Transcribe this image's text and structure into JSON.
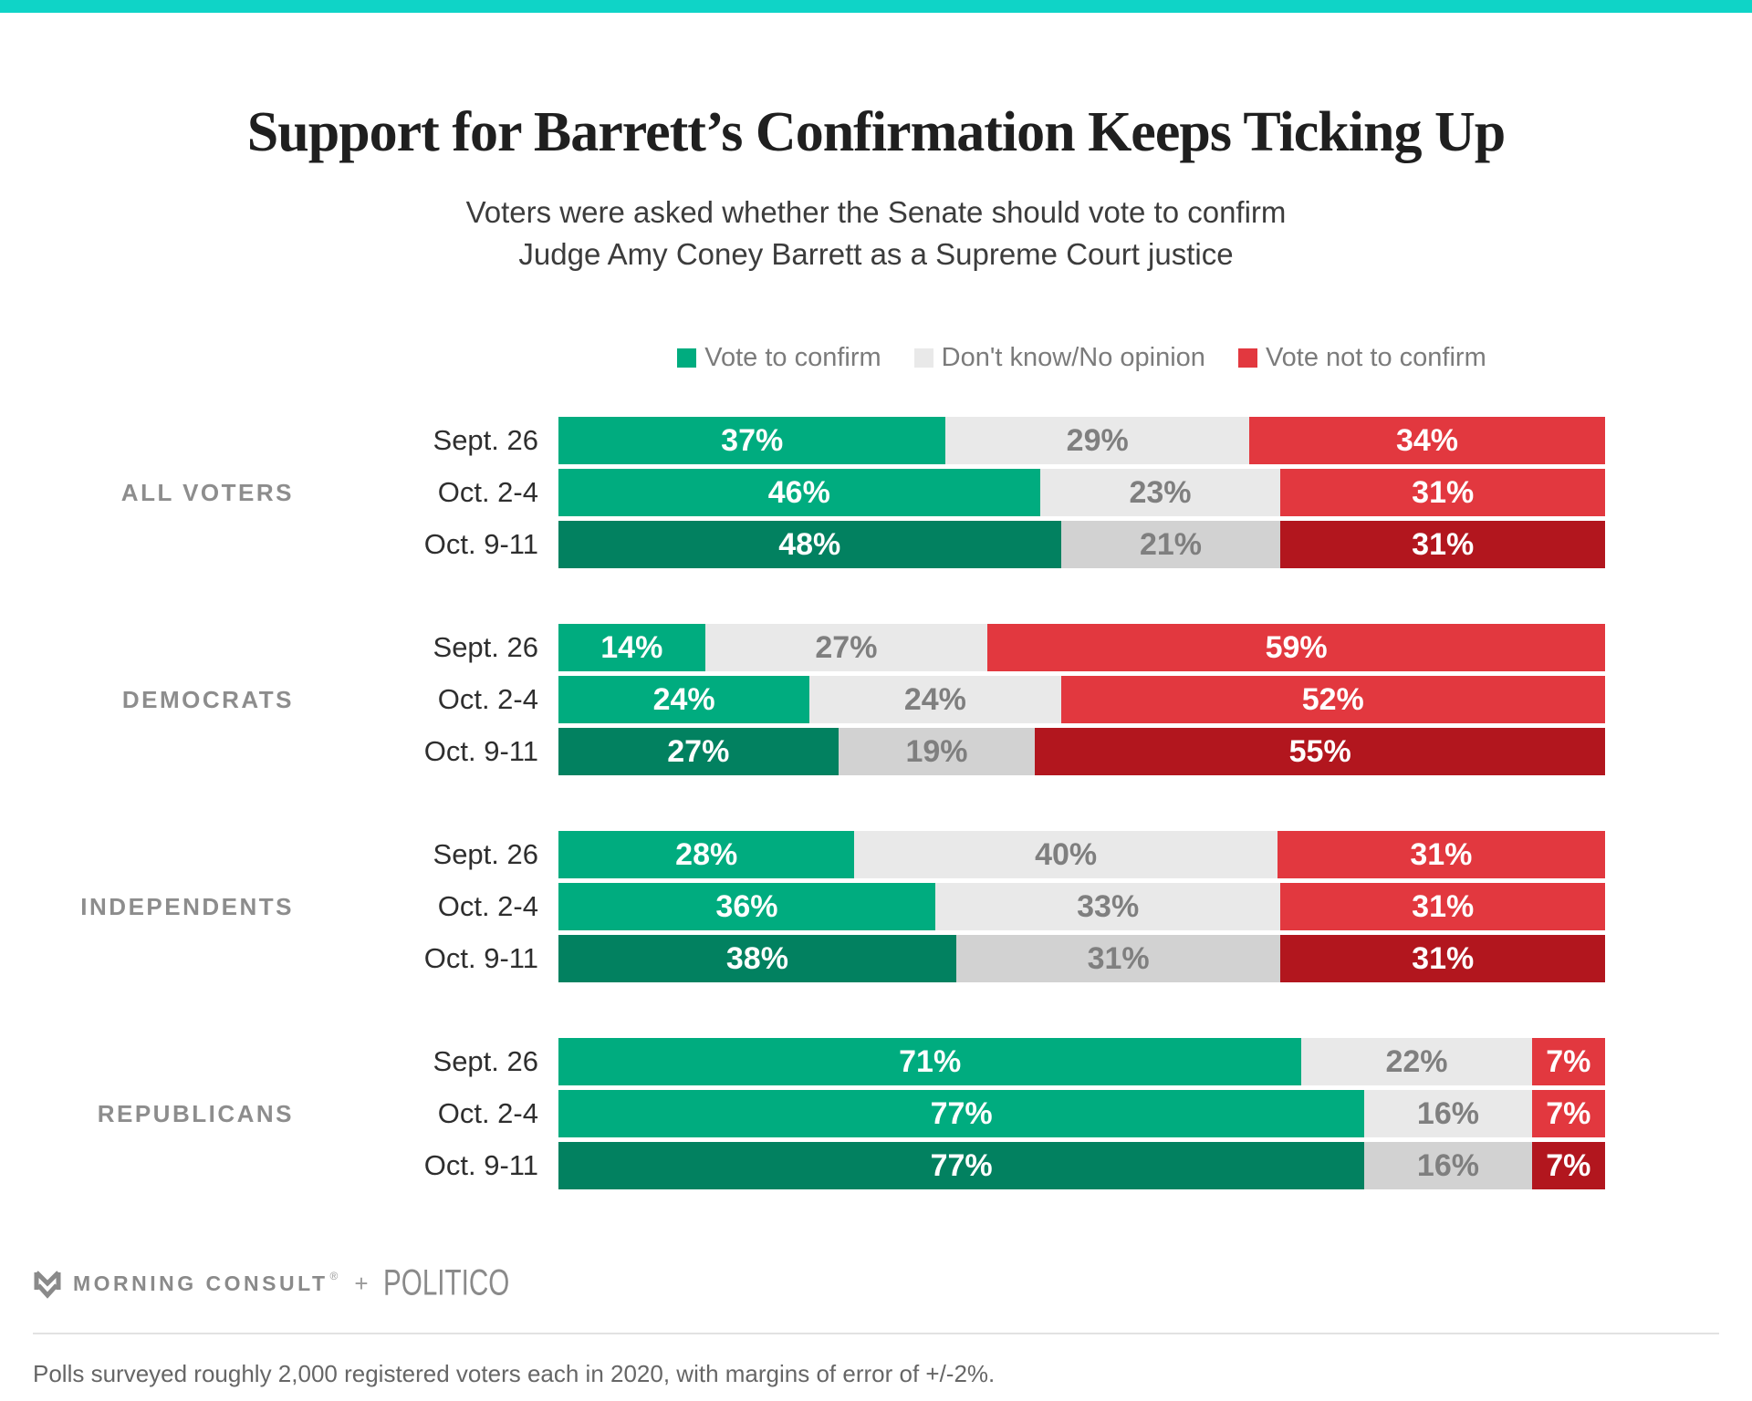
{
  "accent": {
    "top_bar_color": "#0fd4c7"
  },
  "header": {
    "title": "Support for Barrett’s Confirmation Keeps Ticking Up",
    "subtitle_line1": "Voters were asked whether the Senate should vote to confirm",
    "subtitle_line2": "Judge Amy Coney Barrett as a Supreme Court justice"
  },
  "legend": [
    {
      "label": "Vote to confirm",
      "color": "#00ac7f",
      "icon": "green-swatch-icon"
    },
    {
      "label": "Don't know/No opinion",
      "color": "#e9e9e9",
      "icon": "gray-swatch-icon"
    },
    {
      "label": "Vote not to confirm",
      "color": "#e2383f",
      "icon": "red-swatch-icon"
    }
  ],
  "chart_data": {
    "type": "bar",
    "orientation": "horizontal-stacked",
    "value_unit": "%",
    "series_names": [
      "Vote to confirm",
      "Don't know/No opinion",
      "Vote not to confirm"
    ],
    "series_keys": [
      "vote-to-confirm",
      "dont-know",
      "vote-not-to-confirm"
    ],
    "colors": {
      "normal": [
        "#00ac7f",
        "#e9e9e9",
        "#e2383f"
      ],
      "latest": [
        "#028160",
        "#d2d2d2",
        "#b2161e"
      ]
    },
    "label_colors": {
      "on_color": "#ffffff",
      "on_gray": "#7f7f7f"
    },
    "groups": [
      {
        "name": "ALL VOTERS",
        "rows": [
          {
            "date": "Sept. 26",
            "values": [
              37,
              29,
              34
            ]
          },
          {
            "date": "Oct. 2-4",
            "values": [
              46,
              23,
              31
            ]
          },
          {
            "date": "Oct. 9-11",
            "values": [
              48,
              21,
              31
            ]
          }
        ]
      },
      {
        "name": "DEMOCRATS",
        "rows": [
          {
            "date": "Sept. 26",
            "values": [
              14,
              27,
              59
            ]
          },
          {
            "date": "Oct. 2-4",
            "values": [
              24,
              24,
              52
            ]
          },
          {
            "date": "Oct. 9-11",
            "values": [
              27,
              19,
              55
            ]
          }
        ]
      },
      {
        "name": "INDEPENDENTS",
        "rows": [
          {
            "date": "Sept. 26",
            "values": [
              28,
              40,
              31
            ]
          },
          {
            "date": "Oct. 2-4",
            "values": [
              36,
              33,
              31
            ]
          },
          {
            "date": "Oct. 9-11",
            "values": [
              38,
              31,
              31
            ]
          }
        ]
      },
      {
        "name": "REPUBLICANS",
        "rows": [
          {
            "date": "Sept. 26",
            "values": [
              71,
              22,
              7
            ]
          },
          {
            "date": "Oct. 2-4",
            "values": [
              77,
              16,
              7
            ]
          },
          {
            "date": "Oct. 9-11",
            "values": [
              77,
              16,
              7
            ]
          }
        ]
      }
    ]
  },
  "footer": {
    "brand1": "MORNING CONSULT",
    "reg_mark": "®",
    "plus": "+",
    "brand2": "POLITICO",
    "note": "Polls surveyed roughly 2,000 registered voters each in 2020, with margins of error of +/-2%."
  }
}
